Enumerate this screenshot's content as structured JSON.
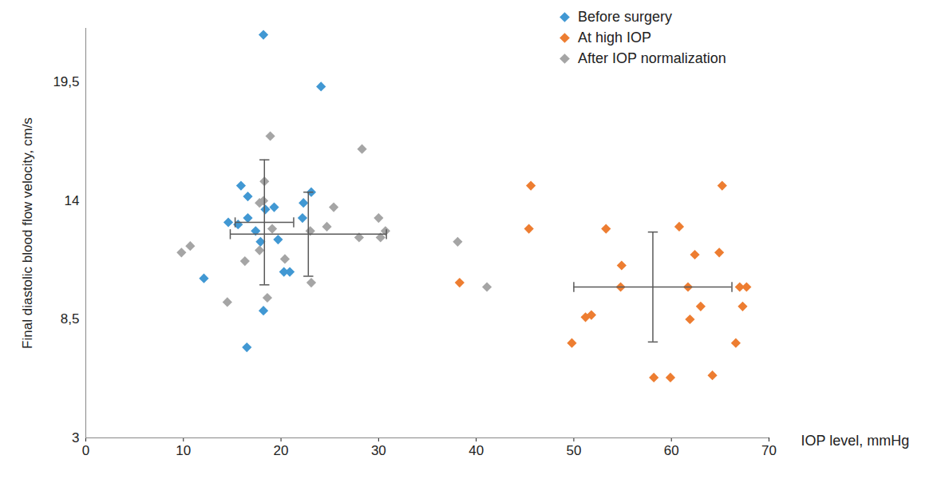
{
  "chart_data": {
    "type": "scatter",
    "x_label": "IOP level, mmHg",
    "y_label": "Final diastolic blood flow velocity, cm/s",
    "xlim": [
      0,
      70
    ],
    "xticks": [
      0,
      10,
      20,
      30,
      40,
      50,
      60,
      70
    ],
    "ylim": [
      3,
      22
    ],
    "yticks": [
      3,
      {
        "value": 8.5,
        "label": "8,5"
      },
      14,
      {
        "value": 19.5,
        "label": "19,5"
      }
    ],
    "grid": false,
    "legend": "upper right",
    "marker": "diamond",
    "series": [
      {
        "name": "Before surgery",
        "color": "#4198d3",
        "x": [
          18.2,
          24.1,
          15.9,
          16.6,
          23.1,
          22.3,
          16.6,
          14.6,
          15.6,
          18.4,
          19.3,
          22.2,
          17.4,
          17.9,
          19.7,
          20.3,
          20.9,
          12.1,
          18.2,
          16.5
        ],
        "y": [
          21.7,
          19.3,
          14.7,
          14.2,
          14.4,
          13.9,
          13.2,
          13.0,
          12.9,
          13.6,
          13.7,
          13.2,
          12.6,
          12.1,
          12.2,
          10.7,
          10.7,
          10.4,
          8.9,
          7.2
        ],
        "mean_x": 18.3,
        "sd_x": 3.0,
        "mean_y": 13.0,
        "sd_y": 2.9
      },
      {
        "name": "At high IOP",
        "color": "#ed7d31",
        "x": [
          38.3,
          45.6,
          45.4,
          53.3,
          60.8,
          49.8,
          54.9,
          54.8,
          62.4,
          61.7,
          64.9,
          65.2,
          51.2,
          51.8,
          63.0,
          61.9,
          58.2,
          59.9,
          64.2,
          66.6,
          67.0,
          67.7,
          67.3
        ],
        "y": [
          10.2,
          14.7,
          12.7,
          12.7,
          12.8,
          7.4,
          11.0,
          10.0,
          11.5,
          10.0,
          11.6,
          14.7,
          8.6,
          8.7,
          9.1,
          8.5,
          5.8,
          5.8,
          5.9,
          7.4,
          10.0,
          10.0,
          9.1
        ],
        "mean_x": 58.1,
        "sd_x": 8.1,
        "mean_y": 10.0,
        "sd_y": 2.55
      },
      {
        "name": "After IOP normalization",
        "color": "#a5a5a5",
        "x": [
          9.8,
          10.7,
          18.9,
          28.3,
          18.3,
          18.2,
          17.8,
          25.4,
          30.0,
          24.7,
          19.1,
          23.0,
          30.7,
          28.0,
          30.2,
          17.8,
          16.3,
          20.4,
          23.1,
          18.6,
          14.5,
          38.1,
          41.1
        ],
        "y": [
          11.6,
          11.9,
          17.0,
          16.4,
          14.9,
          14.0,
          13.9,
          13.7,
          13.2,
          12.8,
          12.7,
          12.6,
          12.6,
          12.3,
          12.3,
          11.7,
          11.2,
          11.3,
          10.2,
          9.5,
          9.3,
          12.1,
          10.0
        ],
        "mean_x": 22.8,
        "sd_x": 8.0,
        "mean_y": 12.45,
        "sd_y": 1.95
      }
    ]
  }
}
